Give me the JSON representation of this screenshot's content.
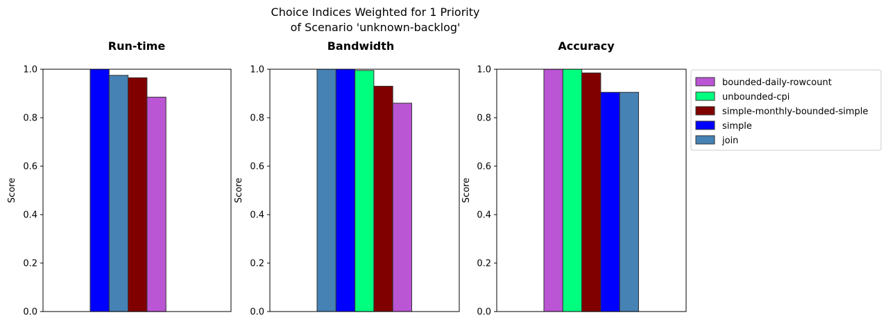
{
  "figure": {
    "suptitle_line1": "Choice Indices Weighted for 1 Priority",
    "suptitle_line2": "of Scenario 'unknown-backlog'"
  },
  "colors": {
    "bounded-daily-rowcount": "#ba55d3",
    "unbounded-cpi": "#00ff7f",
    "simple-monthly-bounded-simple": "#800000",
    "simple": "#0000ff",
    "join": "#4682b4"
  },
  "legend": {
    "placement": "upper-left outside right of last panel",
    "entries": [
      "bounded-daily-rowcount",
      "unbounded-cpi",
      "simple-monthly-bounded-simple",
      "simple",
      "join"
    ]
  },
  "chart_data": [
    {
      "type": "bar",
      "title": "Run-time",
      "ylabel": "Score",
      "ylim": [
        0,
        1
      ],
      "yticks": [
        "0.0",
        "0.2",
        "0.4",
        "0.6",
        "0.8",
        "1.0"
      ],
      "series": [
        {
          "name": "simple",
          "value": 1.0
        },
        {
          "name": "join",
          "value": 0.975
        },
        {
          "name": "simple-monthly-bounded-simple",
          "value": 0.965
        },
        {
          "name": "bounded-daily-rowcount",
          "value": 0.885
        },
        {
          "name": "unbounded-cpi",
          "value": 0.0
        }
      ]
    },
    {
      "type": "bar",
      "title": "Bandwidth",
      "ylabel": "Score",
      "ylim": [
        0,
        1
      ],
      "yticks": [
        "0.0",
        "0.2",
        "0.4",
        "0.6",
        "0.8",
        "1.0"
      ],
      "series": [
        {
          "name": "join",
          "value": 1.0
        },
        {
          "name": "simple",
          "value": 1.0
        },
        {
          "name": "unbounded-cpi",
          "value": 0.995
        },
        {
          "name": "simple-monthly-bounded-simple",
          "value": 0.93
        },
        {
          "name": "bounded-daily-rowcount",
          "value": 0.86
        }
      ]
    },
    {
      "type": "bar",
      "title": "Accuracy",
      "ylabel": "Score",
      "ylim": [
        0,
        1
      ],
      "yticks": [
        "0.0",
        "0.2",
        "0.4",
        "0.6",
        "0.8",
        "1.0"
      ],
      "series": [
        {
          "name": "bounded-daily-rowcount",
          "value": 1.0
        },
        {
          "name": "unbounded-cpi",
          "value": 1.0
        },
        {
          "name": "simple-monthly-bounded-simple",
          "value": 0.985
        },
        {
          "name": "simple",
          "value": 0.905
        },
        {
          "name": "join",
          "value": 0.905
        }
      ]
    }
  ]
}
